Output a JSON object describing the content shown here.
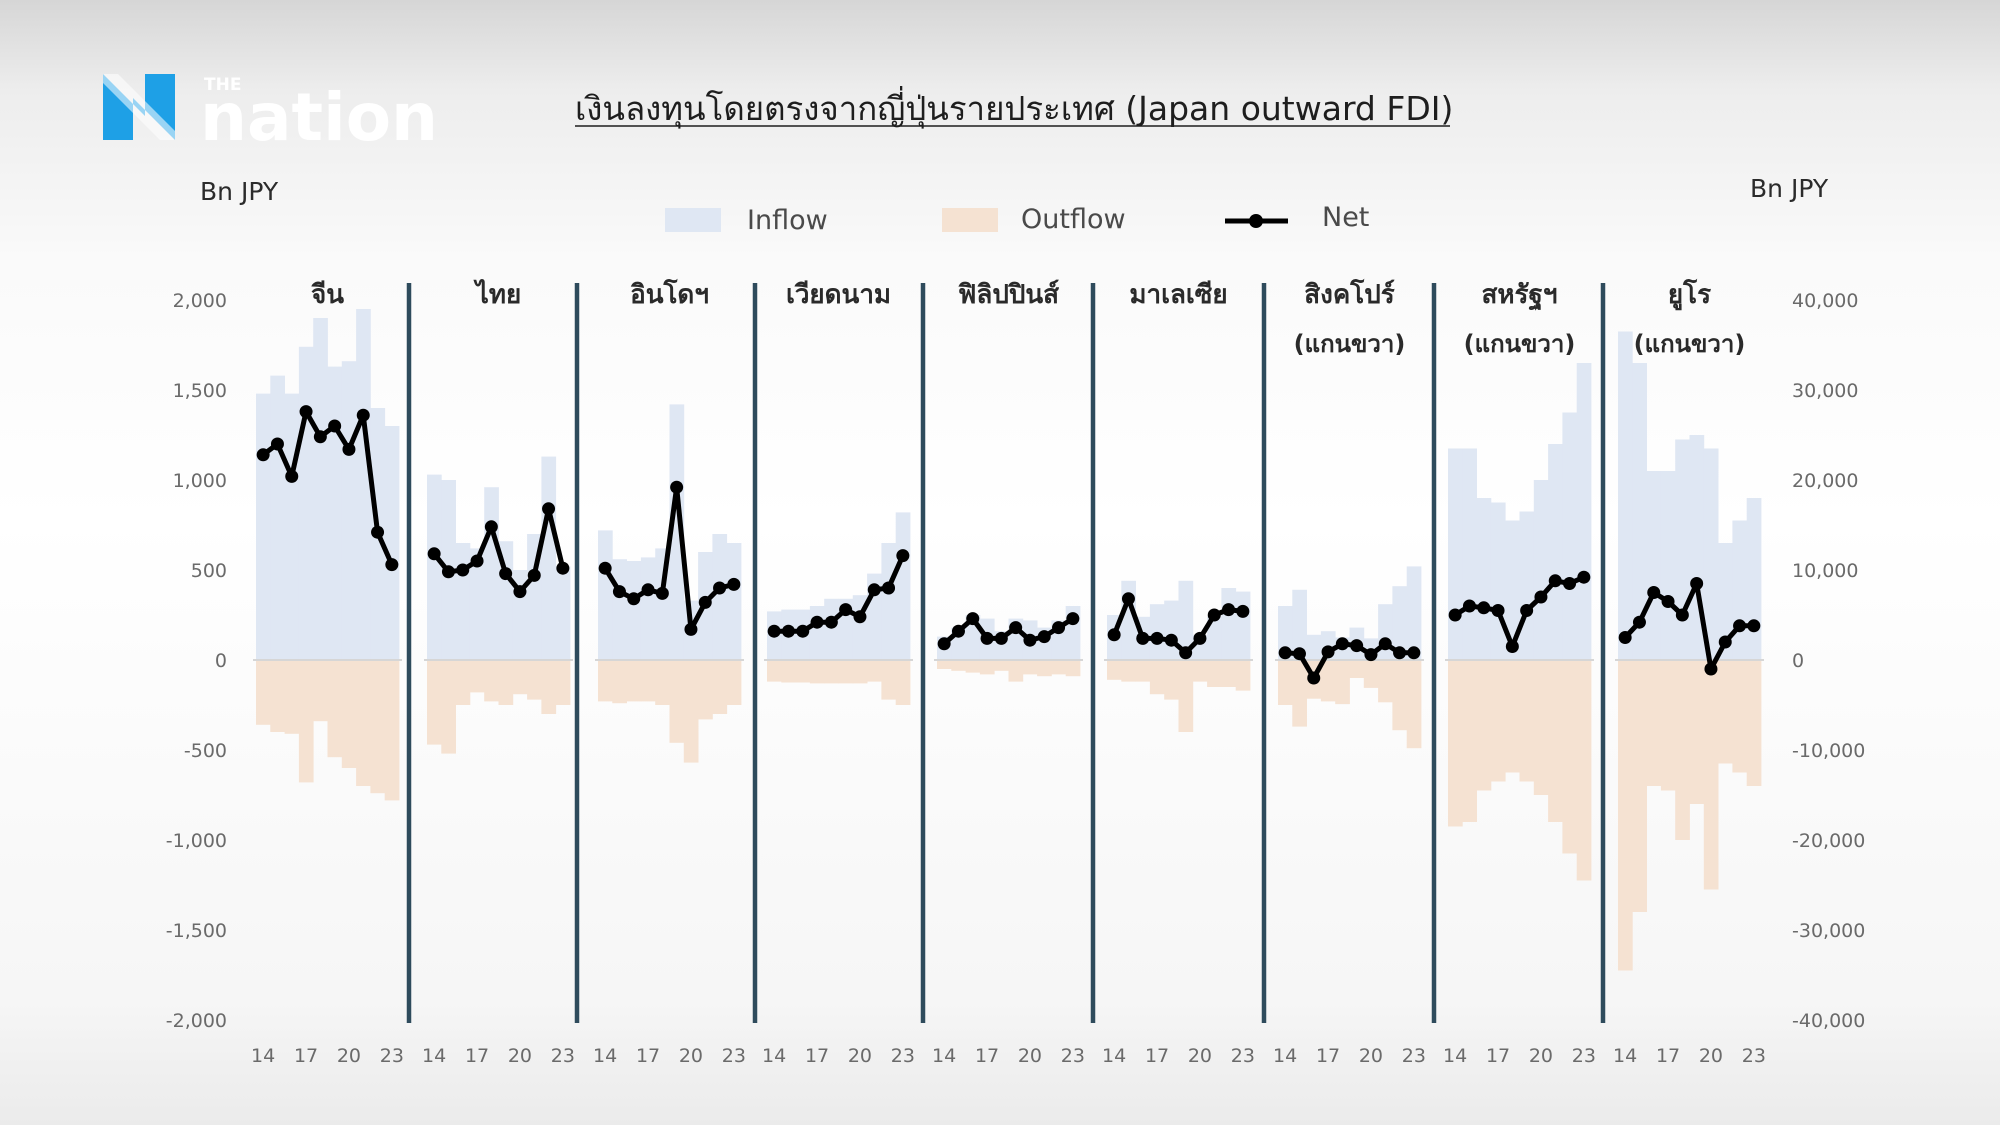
{
  "brand": {
    "the": "THE",
    "name": "nation",
    "mark_color": "#1ea0e6"
  },
  "title": "เงินลงทุนโดยตรงจากญี่ปุ่นรายประเทศ (Japan outward FDI)",
  "colors": {
    "inflow": "#dfe7f3",
    "outflow": "#f5e2d2",
    "net": "#000000",
    "separator": "#2e4b5c",
    "zero_line": "#d6d6d6"
  },
  "chart_data": {
    "type": "bar",
    "left_axis": {
      "label": "Bn JPY",
      "ticks": [
        "2,000",
        "1,500",
        "1,000",
        "500",
        "0",
        "-500",
        "-1,000",
        "-1,500",
        "-2,000"
      ],
      "range": [
        -2000,
        2000
      ]
    },
    "right_axis": {
      "label": "Bn JPY",
      "ticks": [
        "40,000",
        "30,000",
        "20,000",
        "10,000",
        "0",
        "-10,000",
        "-20,000",
        "-30,000",
        "-40,000"
      ],
      "range": [
        -40000,
        40000
      ]
    },
    "legend": [
      {
        "name": "Inflow",
        "kind": "area"
      },
      {
        "name": "Outflow",
        "kind": "area"
      },
      {
        "name": "Net",
        "kind": "line"
      }
    ],
    "x_tick_labels": [
      "14",
      "17",
      "20",
      "23"
    ],
    "years": [
      2014,
      2015,
      2016,
      2017,
      2018,
      2019,
      2020,
      2021,
      2022,
      2023
    ],
    "panels": [
      {
        "name": "จีน",
        "note": "",
        "axis": "left",
        "inflow": [
          1480,
          1580,
          1480,
          1740,
          1900,
          1630,
          1660,
          1950,
          1400,
          1300
        ],
        "outflow": [
          -360,
          -400,
          -410,
          -680,
          -340,
          -540,
          -600,
          -700,
          -740,
          -780
        ],
        "net": [
          1140,
          1200,
          1020,
          1380,
          1240,
          1300,
          1170,
          1360,
          710,
          530
        ]
      },
      {
        "name": "ไทย",
        "note": "",
        "axis": "left",
        "inflow": [
          1030,
          1000,
          650,
          620,
          960,
          660,
          500,
          700,
          1130,
          520
        ],
        "outflow": [
          -470,
          -520,
          -250,
          -180,
          -230,
          -250,
          -190,
          -220,
          -300,
          -250
        ],
        "net": [
          590,
          490,
          500,
          550,
          740,
          480,
          380,
          470,
          840,
          510
        ]
      },
      {
        "name": "อินโดฯ",
        "note": "",
        "axis": "left",
        "inflow": [
          720,
          560,
          550,
          570,
          620,
          1420,
          330,
          600,
          700,
          650
        ],
        "outflow": [
          -230,
          -240,
          -230,
          -230,
          -250,
          -460,
          -570,
          -330,
          -300,
          -250
        ],
        "net": [
          510,
          380,
          340,
          390,
          370,
          960,
          170,
          320,
          400,
          420
        ]
      },
      {
        "name": "เวียดนาม",
        "note": "",
        "axis": "left",
        "inflow": [
          270,
          280,
          280,
          300,
          340,
          340,
          360,
          480,
          650,
          820
        ],
        "outflow": [
          -120,
          -125,
          -125,
          -130,
          -130,
          -130,
          -130,
          -120,
          -220,
          -250
        ],
        "net": [
          160,
          160,
          160,
          210,
          210,
          280,
          240,
          390,
          400,
          580
        ]
      },
      {
        "name": "ฟิลิปปินส์",
        "note": "",
        "axis": "left",
        "inflow": [
          130,
          180,
          250,
          230,
          160,
          230,
          220,
          180,
          220,
          300
        ],
        "outflow": [
          -50,
          -60,
          -70,
          -80,
          -60,
          -120,
          -80,
          -90,
          -80,
          -90
        ],
        "net": [
          90,
          160,
          230,
          120,
          120,
          180,
          110,
          130,
          180,
          230
        ]
      },
      {
        "name": "มาเลเซีย",
        "note": "",
        "axis": "left",
        "inflow": [
          250,
          440,
          240,
          310,
          330,
          440,
          140,
          240,
          400,
          380
        ],
        "outflow": [
          -110,
          -120,
          -120,
          -190,
          -220,
          -400,
          -120,
          -150,
          -150,
          -170
        ],
        "net": [
          140,
          340,
          120,
          120,
          110,
          40,
          120,
          250,
          280,
          270
        ]
      },
      {
        "name": "สิงคโปร์",
        "note": "(แกนขวา)",
        "axis": "right",
        "inflow": [
          6000,
          7800,
          2800,
          3200,
          2500,
          3600,
          2400,
          6200,
          8200,
          10400
        ],
        "outflow": [
          -5000,
          -7400,
          -4300,
          -4600,
          -4900,
          -2000,
          -3100,
          -4700,
          -7800,
          -9800
        ],
        "net": [
          800,
          700,
          -2000,
          900,
          1800,
          1600,
          600,
          1800,
          800,
          800
        ]
      },
      {
        "name": "สหรัฐฯ",
        "note": "(แกนขวา)",
        "axis": "right",
        "inflow": [
          23500,
          23500,
          18000,
          17500,
          15500,
          16500,
          20000,
          24000,
          27500,
          33000
        ],
        "outflow": [
          -18500,
          -18000,
          -14500,
          -13500,
          -12500,
          -13500,
          -15000,
          -18000,
          -21500,
          -24500
        ],
        "net": [
          5000,
          6000,
          5800,
          5500,
          1500,
          5500,
          7000,
          8800,
          8500,
          9200
        ]
      },
      {
        "name": "ยูโร",
        "note": "(แกนขวา)",
        "axis": "right",
        "inflow": [
          36500,
          33000,
          21000,
          21000,
          24500,
          25000,
          23500,
          13000,
          15500,
          18000
        ],
        "outflow": [
          -34500,
          -28000,
          -14000,
          -14500,
          -20000,
          -16000,
          -25500,
          -11500,
          -12500,
          -14000
        ],
        "net": [
          2500,
          4200,
          7500,
          6500,
          5000,
          8500,
          -1000,
          2000,
          3800,
          3800
        ]
      }
    ]
  }
}
